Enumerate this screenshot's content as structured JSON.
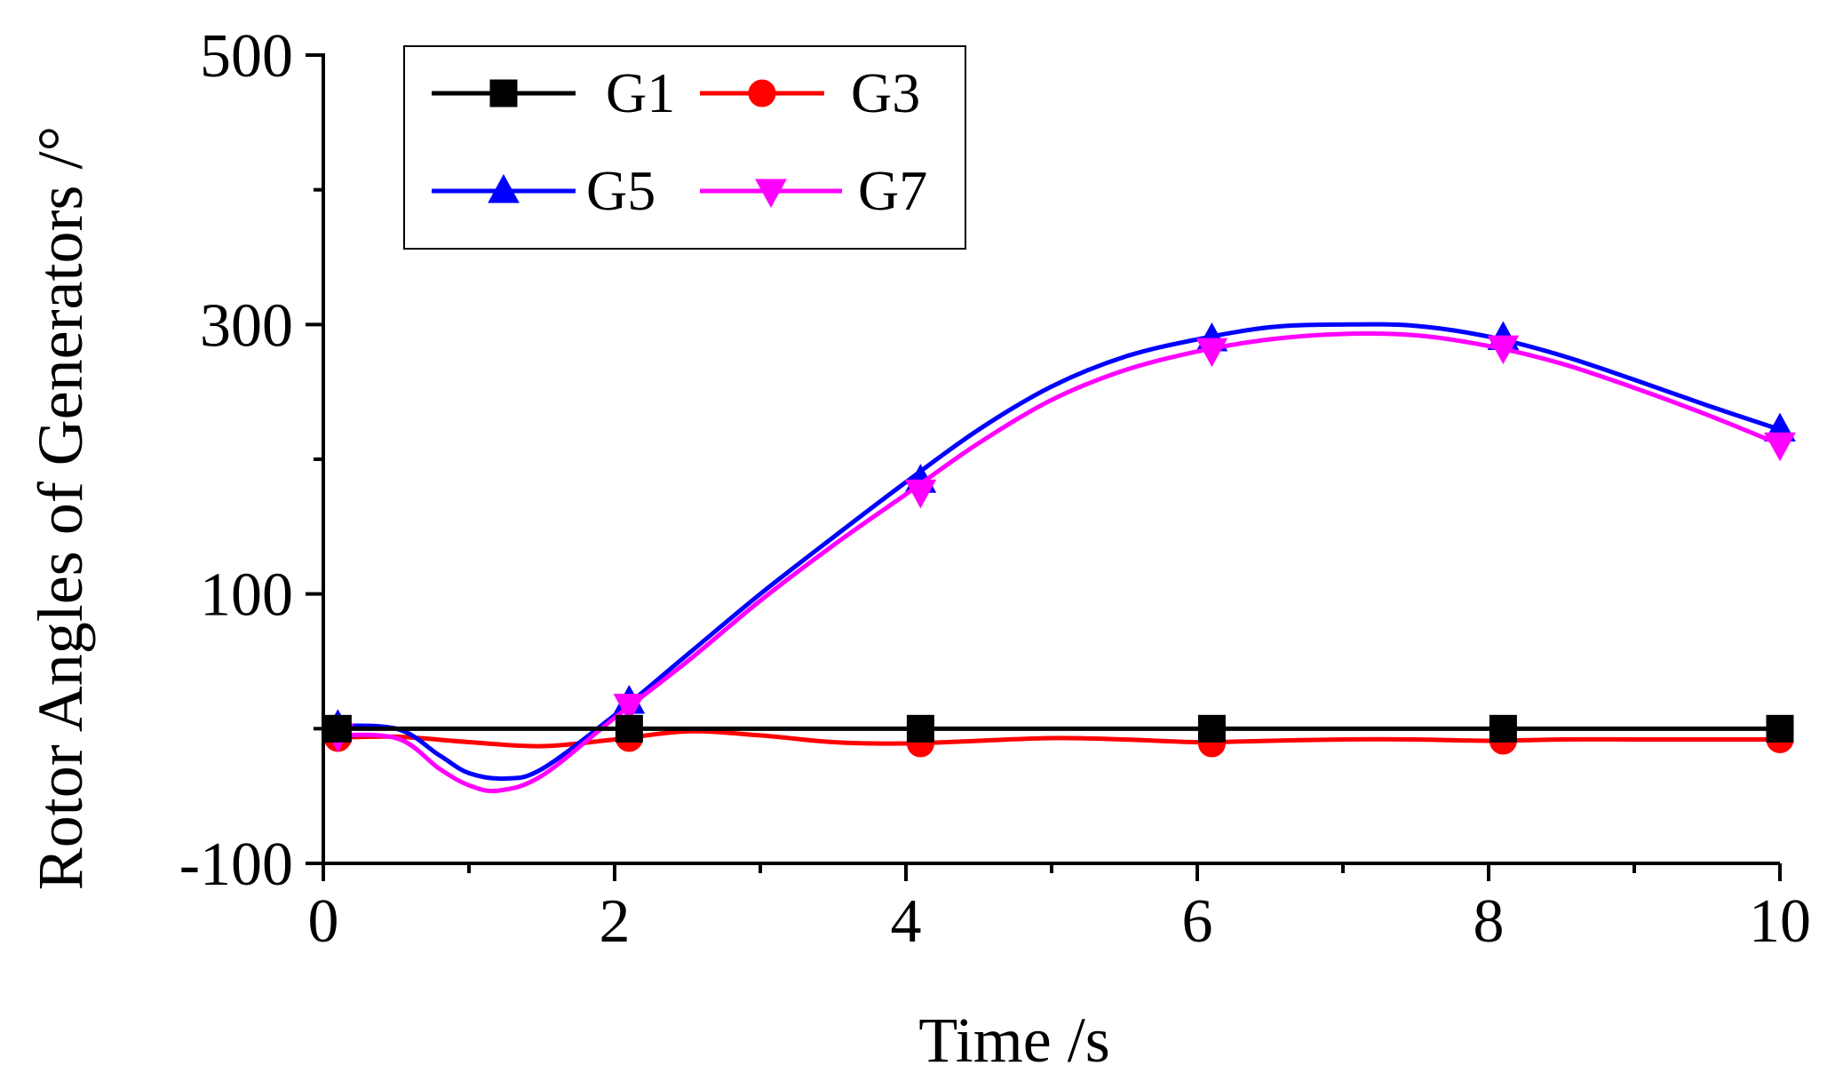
{
  "chart_data": {
    "type": "line",
    "title": "",
    "xlabel": "Time /s",
    "ylabel": "Rotor Angles of Generators /°",
    "xlim": [
      0,
      10
    ],
    "ylim": [
      -100,
      500
    ],
    "xticks": [
      0,
      2,
      4,
      6,
      8,
      10
    ],
    "xtick_labels": [
      "0",
      "2",
      "4",
      "6",
      "8",
      "10"
    ],
    "yticks": [
      -100,
      100,
      300,
      500
    ],
    "ytick_labels": [
      "-100",
      "100",
      "300",
      "500"
    ],
    "grid": false,
    "legend_position": "top-left",
    "series": [
      {
        "name": "G1",
        "color": "#000000",
        "marker": "square",
        "x": [
          0,
          10
        ],
        "y": [
          0,
          0
        ],
        "marker_x": [
          0.1,
          2.1,
          4.1,
          6.1,
          8.1,
          10
        ],
        "marker_y": [
          0,
          0,
          0,
          0,
          0,
          0
        ]
      },
      {
        "name": "G3",
        "color": "#ff0000",
        "marker": "circle",
        "x": [
          0,
          0.5,
          1.0,
          1.5,
          2.0,
          2.5,
          3.0,
          3.5,
          4.0,
          4.5,
          5.0,
          5.5,
          6.0,
          6.5,
          7.0,
          7.5,
          8.0,
          8.5,
          9.0,
          9.5,
          10.0
        ],
        "y": [
          -7,
          -6,
          -10,
          -13,
          -8,
          -2,
          -5,
          -10,
          -11,
          -9,
          -7,
          -8,
          -10,
          -9,
          -8,
          -8,
          -9,
          -8,
          -8,
          -8,
          -8
        ],
        "marker_x": [
          0.1,
          2.1,
          4.1,
          6.1,
          8.1,
          10
        ],
        "marker_y": [
          -7,
          -7,
          -11,
          -11,
          -9,
          -8
        ]
      },
      {
        "name": "G5",
        "color": "#0000ff",
        "marker": "triangle-up",
        "x": [
          0,
          0.5,
          0.8,
          1.0,
          1.25,
          1.5,
          2.0,
          2.5,
          3.0,
          3.5,
          4.0,
          4.5,
          5.0,
          5.5,
          6.0,
          6.5,
          7.0,
          7.5,
          8.0,
          8.5,
          9.0,
          9.5,
          10.0
        ],
        "y": [
          2,
          0,
          -20,
          -33,
          -37,
          -30,
          10,
          55,
          100,
          142,
          183,
          222,
          254,
          276,
          289,
          298,
          300,
          299,
          291,
          277,
          259,
          240,
          222
        ],
        "marker_x": [
          0.1,
          2.1,
          4.1,
          6.1,
          8.1,
          10
        ],
        "marker_y": [
          2,
          20,
          184,
          289,
          290,
          222
        ]
      },
      {
        "name": "G7",
        "color": "#ff00ff",
        "marker": "triangle-down",
        "x": [
          0,
          0.5,
          0.8,
          1.0,
          1.2,
          1.5,
          2.0,
          2.5,
          3.0,
          3.5,
          4.0,
          4.5,
          5.0,
          5.5,
          6.0,
          6.5,
          7.0,
          7.5,
          8.0,
          8.5,
          9.0,
          9.5,
          10.0
        ],
        "y": [
          -5,
          -7,
          -30,
          -42,
          -46,
          -35,
          8,
          50,
          95,
          136,
          174,
          212,
          244,
          266,
          280,
          289,
          293,
          292,
          284,
          271,
          253,
          233,
          211
        ],
        "marker_x": [
          0.1,
          2.1,
          4.1,
          6.1,
          8.1,
          10
        ],
        "marker_y": [
          -5,
          17,
          176,
          281,
          283,
          211
        ]
      }
    ]
  }
}
